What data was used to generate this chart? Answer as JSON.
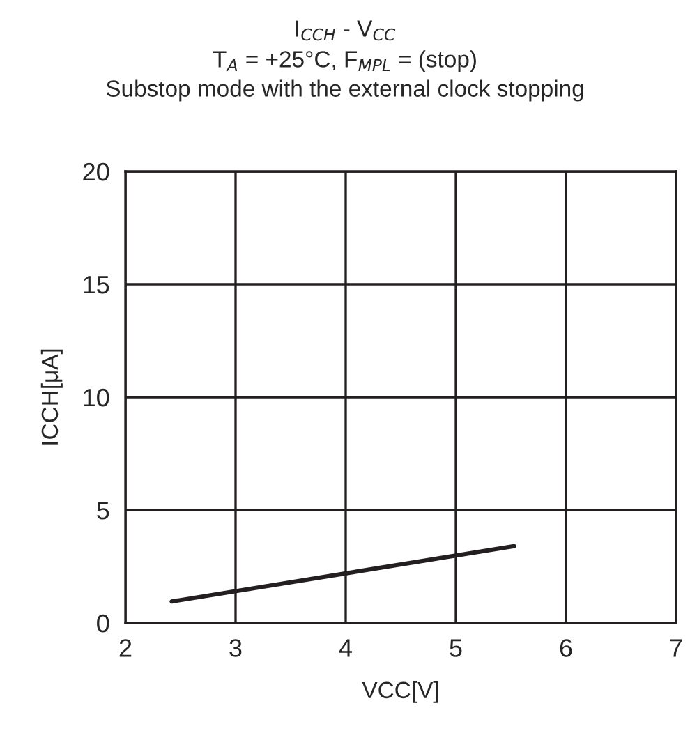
{
  "chart_data": {
    "type": "line",
    "title": "I$_{CCH}$ - V$_{CC}$",
    "subtitle": "T$_{A}$ = +25°C, F$_{MPL}$ = (stop)",
    "annotations": [
      "Substop mode with the external clock stopping"
    ],
    "xlabel": "VCC[V]",
    "ylabel": "ICCH[μA]",
    "x": [
      2.42,
      5.53
    ],
    "series": [
      {
        "color": "#231f20",
        "values": [
          0.95,
          3.4
        ]
      }
    ],
    "xlim": [
      2,
      7
    ],
    "xticks": [
      2,
      3,
      4,
      5,
      6,
      7
    ],
    "ylim": [
      0,
      20
    ],
    "yticks": [
      0,
      5,
      10,
      15,
      20
    ],
    "grid": true,
    "line_style": "solid",
    "marker": "none"
  }
}
